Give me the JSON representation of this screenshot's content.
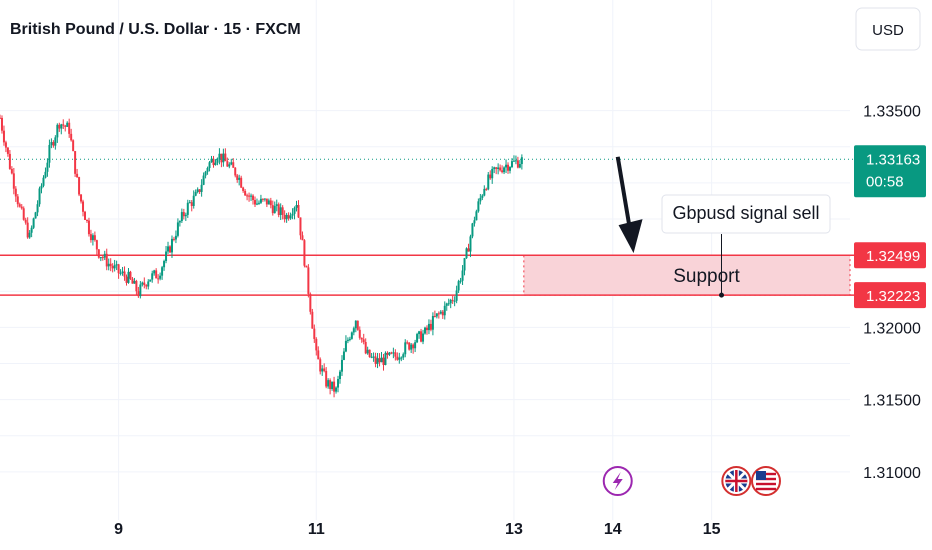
{
  "chart_data": {
    "type": "candlestick",
    "title": "British Pound / U.S. Dollar · 15 · FXCM",
    "currency": "USD",
    "x_ticks": [
      {
        "day": 9,
        "label": "9"
      },
      {
        "day": 11,
        "label": "11"
      },
      {
        "day": 13,
        "label": "13"
      },
      {
        "day": 14,
        "label": "14"
      },
      {
        "day": 15,
        "label": "15"
      }
    ],
    "xlim": [
      7.8,
      16.4
    ],
    "y_ticks": [
      1.335,
      1.32,
      1.315,
      1.31
    ],
    "y_tick_labels": [
      "1.33500",
      "1.32000",
      "1.31500",
      "1.31000"
    ],
    "ylim": [
      1.3075,
      1.3385
    ],
    "grid": true,
    "price_path": [
      [
        7.8,
        1.3345
      ],
      [
        7.9,
        1.3312
      ],
      [
        8.0,
        1.3282
      ],
      [
        8.1,
        1.3262
      ],
      [
        8.2,
        1.3292
      ],
      [
        8.3,
        1.3322
      ],
      [
        8.4,
        1.3342
      ],
      [
        8.5,
        1.3337
      ],
      [
        8.6,
        1.3292
      ],
      [
        8.7,
        1.3268
      ],
      [
        8.8,
        1.3252
      ],
      [
        8.9,
        1.3244
      ],
      [
        9.0,
        1.3238
      ],
      [
        9.1,
        1.3234
      ],
      [
        9.2,
        1.3224
      ],
      [
        9.3,
        1.3234
      ],
      [
        9.4,
        1.3237
      ],
      [
        9.5,
        1.3252
      ],
      [
        9.6,
        1.327
      ],
      [
        9.7,
        1.3284
      ],
      [
        9.8,
        1.3292
      ],
      [
        9.9,
        1.3312
      ],
      [
        10.0,
        1.332
      ],
      [
        10.1,
        1.3313
      ],
      [
        10.2,
        1.3306
      ],
      [
        10.3,
        1.3292
      ],
      [
        10.4,
        1.3286
      ],
      [
        10.5,
        1.3287
      ],
      [
        10.6,
        1.3281
      ],
      [
        10.7,
        1.3277
      ],
      [
        10.8,
        1.3287
      ],
      [
        10.9,
        1.3237
      ],
      [
        11.0,
        1.318
      ],
      [
        11.1,
        1.3162
      ],
      [
        11.2,
        1.3156
      ],
      [
        11.3,
        1.3188
      ],
      [
        11.4,
        1.3206
      ],
      [
        11.5,
        1.3182
      ],
      [
        11.6,
        1.3176
      ],
      [
        11.7,
        1.3178
      ],
      [
        11.8,
        1.318
      ],
      [
        11.9,
        1.3186
      ],
      [
        12.0,
        1.3191
      ],
      [
        12.1,
        1.3196
      ],
      [
        12.2,
        1.3206
      ],
      [
        12.3,
        1.3213
      ],
      [
        12.4,
        1.3222
      ],
      [
        12.5,
        1.3244
      ],
      [
        12.6,
        1.3276
      ],
      [
        12.7,
        1.3298
      ],
      [
        12.8,
        1.3307
      ],
      [
        12.9,
        1.3312
      ],
      [
        13.0,
        1.3314
      ],
      [
        13.1,
        1.3316
      ]
    ],
    "current_price": {
      "value": 1.33163,
      "label": "1.33163",
      "countdown": "00:58"
    },
    "support_zone": {
      "low": 1.32223,
      "high": 1.32499,
      "low_label": "1.32223",
      "high_label": "1.32499",
      "label": "Support"
    },
    "zone_start_day": 13.1,
    "callout": {
      "text": "Gbpusd signal sell",
      "anchor_day": 15.1,
      "anchor_price": 1.32223
    },
    "arrow": {
      "from_day": 14.05,
      "from_price": 1.3318,
      "to_day": 14.2,
      "to_price": 1.325
    },
    "event_markers": [
      {
        "day": 14.05,
        "icon": "lightning-icon",
        "color": "#9c27b0"
      },
      {
        "day": 15.25,
        "icon": "uk-flag-icon",
        "color": "#d32f2f"
      },
      {
        "day": 15.55,
        "icon": "us-flag-icon",
        "color": "#d32f2f"
      }
    ],
    "colors": {
      "up": "#089981",
      "down": "#f23645",
      "zone_fill": "#f9d3d8",
      "zone_line": "#f23645",
      "price_badge": "#089981",
      "level_badge": "#f23645",
      "grid": "#f0f3fa"
    }
  }
}
